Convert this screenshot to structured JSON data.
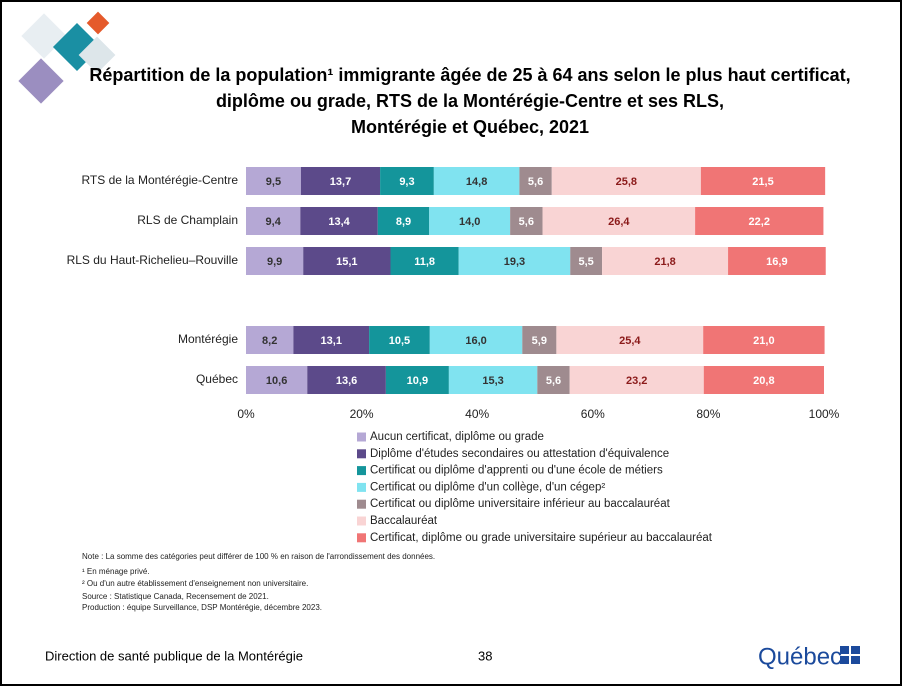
{
  "chart_data": {
    "type": "stacked-bar-horizontal",
    "title": [
      "Répartition de la population¹ immigrante âgée de 25 à 64 ans selon le plus haut certificat,",
      "diplôme ou grade, RTS de la Montérégie-Centre et ses RLS,",
      "Montérégie et Québec, 2021"
    ],
    "categories": [
      "RTS de la Montérégie-Centre",
      "RLS de Champlain",
      "RLS du Haut-Richelieu–Rouville",
      "Montérégie",
      "Québec"
    ],
    "series": [
      {
        "name": "Aucun certificat, diplôme ou grade",
        "color": "#b5a8d5",
        "label_color": "#333333",
        "values": [
          9.5,
          9.4,
          9.9,
          8.2,
          10.6
        ],
        "value_labels": [
          "9,5",
          "9,4",
          "9,9",
          "8,2",
          "10,6"
        ]
      },
      {
        "name": "Diplôme d'études secondaires ou attestation d'équivalence",
        "color": "#5c4a8a",
        "label_color": "#ffffff",
        "values": [
          13.7,
          13.4,
          15.1,
          13.1,
          13.6
        ],
        "value_labels": [
          "13,7",
          "13,4",
          "15,1",
          "13,1",
          "13,6"
        ]
      },
      {
        "name": "Certificat ou diplôme d'apprenti ou d'une école de métiers",
        "color": "#14959b",
        "label_color": "#ffffff",
        "values": [
          9.3,
          8.9,
          11.8,
          10.5,
          10.9
        ],
        "value_labels": [
          "9,3",
          "8,9",
          "11,8",
          "10,5",
          "10,9"
        ]
      },
      {
        "name": "Certificat ou diplôme d'un collège, d'un cégep²",
        "color": "#80e3f0",
        "label_color": "#333333",
        "values": [
          14.8,
          14.0,
          19.3,
          16.0,
          15.3
        ],
        "value_labels": [
          "14,8",
          "14,0",
          "19,3",
          "16,0",
          "15,3"
        ]
      },
      {
        "name": "Certificat ou diplôme universitaire inférieur au baccalauréat",
        "color": "#9f8b8f",
        "label_color": "#ffffff",
        "values": [
          5.6,
          5.6,
          5.5,
          5.9,
          5.6
        ],
        "value_labels": [
          "5,6",
          "5,6",
          "5,5",
          "5,9",
          "5,6"
        ]
      },
      {
        "name": "Baccalauréat",
        "color": "#f9d4d4",
        "label_color": "#8b1a1a",
        "values": [
          25.8,
          26.4,
          21.8,
          25.4,
          23.2
        ],
        "value_labels": [
          "25,8",
          "26,4",
          "21,8",
          "25,4",
          "23,2"
        ]
      },
      {
        "name": "Certificat, diplôme ou grade universitaire supérieur au baccalauréat",
        "color": "#f07575",
        "label_color": "#ffffff",
        "values": [
          21.5,
          22.2,
          16.9,
          21.0,
          20.8
        ],
        "value_labels": [
          "21,5",
          "22,2",
          "16,9",
          "21,0",
          "20,8"
        ]
      }
    ],
    "xlim": [
      0,
      100
    ],
    "xticks": [
      {
        "value": 0,
        "label": "0%"
      },
      {
        "value": 20,
        "label": "20%"
      },
      {
        "value": 40,
        "label": "40%"
      },
      {
        "value": 60,
        "label": "60%"
      },
      {
        "value": 80,
        "label": "80%"
      },
      {
        "value": 100,
        "label": "100%"
      }
    ],
    "notes": [
      "Note : La somme des catégories peut différer de 100 % en raison de l'arrondissement des données.",
      "¹ En ménage privé.",
      "² Ou d'un autre établissement d'enseignement non universitaire.",
      "Source : Statistique Canada, Recensement de 2021.",
      "Production : équipe Surveillance, DSP Montérégie, décembre 2023."
    ]
  },
  "footer": {
    "left": "Direction de santé publique de la Montérégie",
    "page": "38",
    "logo": "Québec"
  }
}
